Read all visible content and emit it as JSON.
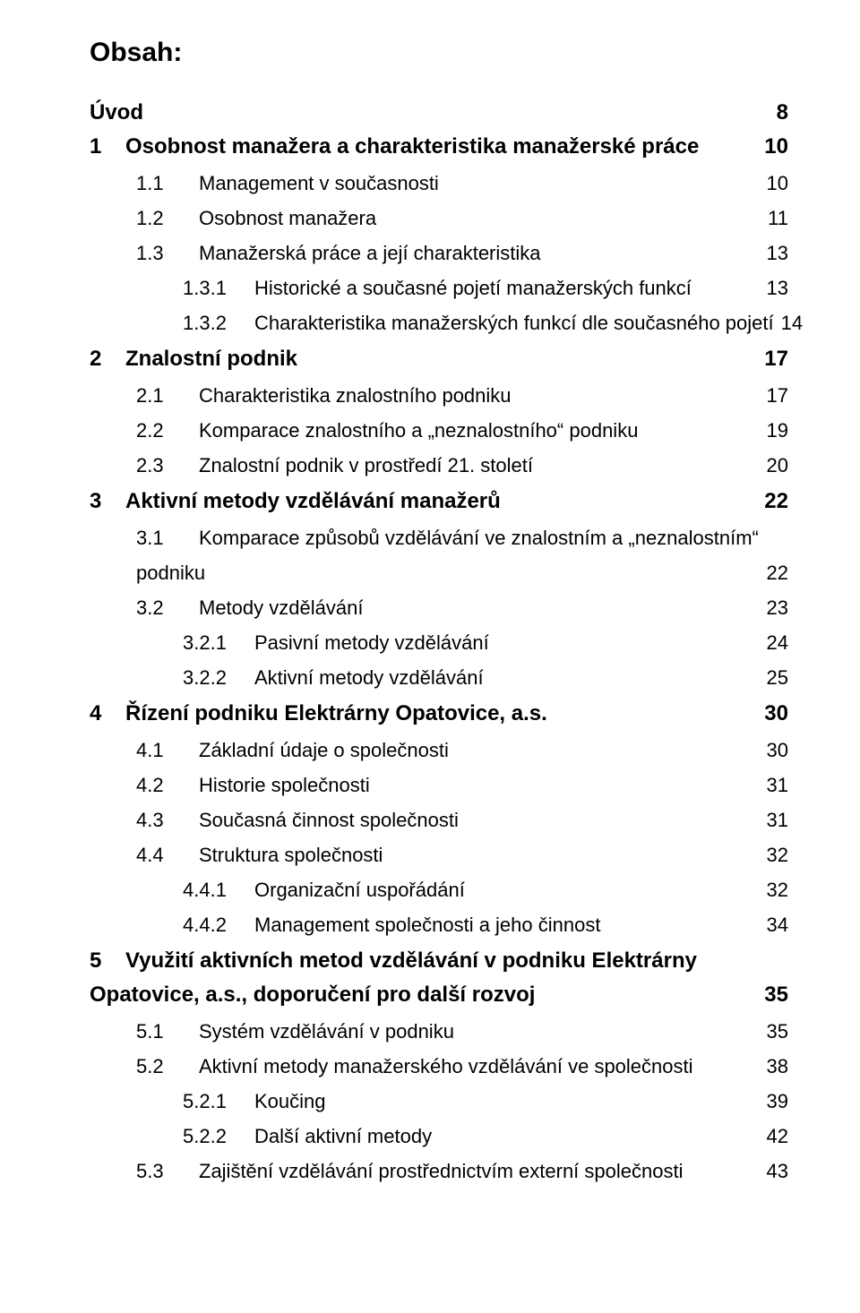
{
  "heading": "Obsah:",
  "items": [
    {
      "level": "top",
      "num": "",
      "title": "Úvod",
      "page": "8"
    },
    {
      "level": "chap",
      "num": "1",
      "title": "Osobnost manažera a charakteristika manažerské práce",
      "page": "10"
    },
    {
      "level": "sec",
      "num": "1.1",
      "title": "Management v současnosti",
      "page": "10"
    },
    {
      "level": "sec",
      "num": "1.2",
      "title": "Osobnost manažera",
      "page": "11"
    },
    {
      "level": "sec",
      "num": "1.3",
      "title": "Manažerská práce a její charakteristika",
      "page": "13"
    },
    {
      "level": "sub",
      "num": "1.3.1",
      "title": "Historické a současné pojetí manažerských funkcí",
      "page": "13"
    },
    {
      "level": "sub",
      "num": "1.3.2",
      "title": "Charakteristika manažerských funkcí dle současného pojetí",
      "page": "14"
    },
    {
      "level": "chap",
      "num": "2",
      "title": "Znalostní podnik",
      "page": "17"
    },
    {
      "level": "sec",
      "num": "2.1",
      "title": "Charakteristika znalostního podniku",
      "page": "17"
    },
    {
      "level": "sec",
      "num": "2.2",
      "title": "Komparace znalostního a „neznalostního“ podniku",
      "page": "19"
    },
    {
      "level": "sec",
      "num": "2.3",
      "title": "Znalostní podnik v prostředí 21. století",
      "page": "20"
    },
    {
      "level": "chap",
      "num": "3",
      "title": "Aktivní metody vzdělávání manažerů",
      "page": "22"
    },
    {
      "level": "sec",
      "num": "3.1",
      "title": "Komparace způsobů vzdělávání ve znalostním a „neznalostním“",
      "wrap": "podniku",
      "page": "22"
    },
    {
      "level": "sec",
      "num": "3.2",
      "title": "Metody vzdělávání",
      "page": "23"
    },
    {
      "level": "sub",
      "num": "3.2.1",
      "title": "Pasivní metody vzdělávání",
      "page": "24"
    },
    {
      "level": "sub",
      "num": "3.2.2",
      "title": "Aktivní metody vzdělávání",
      "page": "25"
    },
    {
      "level": "chap",
      "num": "4",
      "title": "Řízení podniku Elektrárny Opatovice, a.s.",
      "page": "30"
    },
    {
      "level": "sec",
      "num": "4.1",
      "title": "Základní údaje o společnosti",
      "page": "30"
    },
    {
      "level": "sec",
      "num": "4.2",
      "title": "Historie společnosti",
      "page": "31"
    },
    {
      "level": "sec",
      "num": "4.3",
      "title": "Současná činnost společnosti",
      "page": "31"
    },
    {
      "level": "sec",
      "num": "4.4",
      "title": "Struktura společnosti",
      "page": "32"
    },
    {
      "level": "sub",
      "num": "4.4.1",
      "title": "Organizační uspořádání",
      "page": "32"
    },
    {
      "level": "sub",
      "num": "4.4.2",
      "title": "Management společnosti a jeho činnost",
      "page": "34"
    },
    {
      "level": "chap",
      "num": "5",
      "title": "Využití aktivních metod vzdělávání v podniku Elektrárny",
      "wrap": "Opatovice, a.s., doporučení pro další rozvoj",
      "page": "35"
    },
    {
      "level": "sec",
      "num": "5.1",
      "title": "Systém vzdělávání v podniku",
      "page": "35"
    },
    {
      "level": "sec",
      "num": "5.2",
      "title": "Aktivní metody manažerského vzdělávání ve společnosti",
      "page": "38"
    },
    {
      "level": "sub",
      "num": "5.2.1",
      "title": "Koučing",
      "page": "39"
    },
    {
      "level": "sub",
      "num": "5.2.2",
      "title": "Další aktivní metody",
      "page": "42"
    },
    {
      "level": "sec",
      "num": "5.3",
      "title": "Zajištění vzdělávání prostřednictvím externí společnosti",
      "page": "43"
    }
  ]
}
